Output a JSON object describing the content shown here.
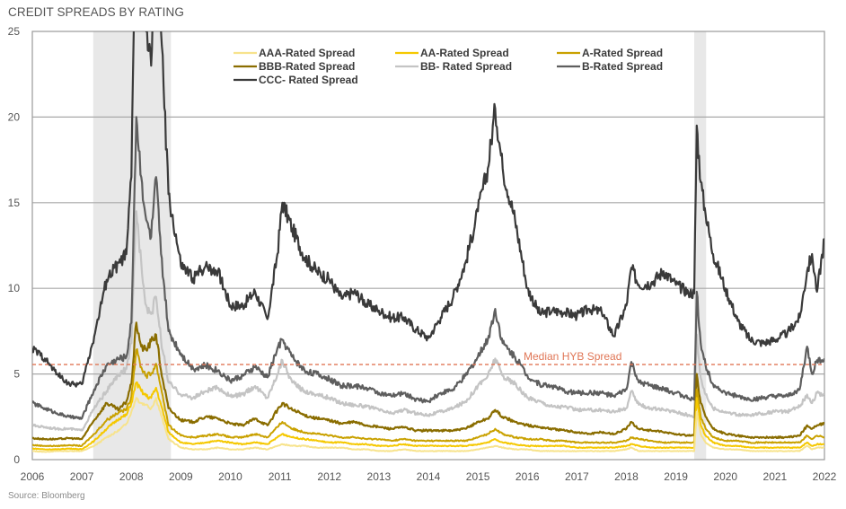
{
  "chart_data": {
    "type": "line",
    "title": "CREDIT SPREADS BY RATING",
    "source": "Source: Bloomberg",
    "xlabel": "",
    "ylabel": "",
    "xlim": [
      2006,
      2022
    ],
    "ylim": [
      0,
      25
    ],
    "yticks": [
      "0",
      "5",
      "10",
      "15",
      "20",
      "25"
    ],
    "xticks": [
      "2006",
      "2007",
      "2008",
      "2009",
      "2010",
      "2011",
      "2012",
      "2013",
      "2014",
      "2015",
      "2016",
      "2017",
      "2018",
      "2019",
      "2020",
      "2021",
      "2022"
    ],
    "grid": "horizontal",
    "legend_position": "top",
    "shaded_periods": [
      [
        2007.23,
        2008.8
      ],
      [
        2019.37,
        2019.61
      ]
    ],
    "annotations": [
      {
        "text": "Median HYB Spread",
        "y": 5.55,
        "style": "dashed",
        "color": "#e07656"
      }
    ],
    "x": [
      2006.0,
      2006.25,
      2006.5,
      2006.75,
      2007.0,
      2007.25,
      2007.5,
      2007.75,
      2007.9,
      2008.0,
      2008.1,
      2008.2,
      2008.3,
      2008.4,
      2008.5,
      2008.6,
      2008.75,
      2009.0,
      2009.25,
      2009.5,
      2009.75,
      2010.0,
      2010.25,
      2010.5,
      2010.75,
      2010.95,
      2011.05,
      2011.25,
      2011.5,
      2011.75,
      2012.0,
      2012.25,
      2012.5,
      2012.75,
      2013.0,
      2013.25,
      2013.5,
      2013.75,
      2014.0,
      2014.25,
      2014.5,
      2014.75,
      2015.0,
      2015.2,
      2015.35,
      2015.5,
      2015.75,
      2016.0,
      2016.25,
      2016.5,
      2016.75,
      2017.0,
      2017.25,
      2017.5,
      2017.75,
      2018.0,
      2018.1,
      2018.25,
      2018.5,
      2018.75,
      2019.0,
      2019.25,
      2019.37,
      2019.42,
      2019.5,
      2019.6,
      2019.75,
      2020.0,
      2020.25,
      2020.5,
      2020.75,
      2021.0,
      2021.25,
      2021.5,
      2021.65,
      2021.75,
      2021.85,
      2022.0
    ],
    "series": [
      {
        "name": "AAA-Rated Spread",
        "color": "#f7e38c",
        "values": [
          0.5,
          0.45,
          0.5,
          0.5,
          0.5,
          0.8,
          1.3,
          1.7,
          2.1,
          2.8,
          3.6,
          3.3,
          3.2,
          3.0,
          3.6,
          2.6,
          1.2,
          0.7,
          0.6,
          0.6,
          0.7,
          0.6,
          0.6,
          0.7,
          0.6,
          0.8,
          0.9,
          0.8,
          0.8,
          0.7,
          0.7,
          0.7,
          0.6,
          0.6,
          0.5,
          0.5,
          0.6,
          0.5,
          0.5,
          0.5,
          0.5,
          0.5,
          0.6,
          0.7,
          0.8,
          0.7,
          0.6,
          0.6,
          0.5,
          0.5,
          0.5,
          0.5,
          0.5,
          0.5,
          0.5,
          0.6,
          0.7,
          0.5,
          0.5,
          0.5,
          0.5,
          0.5,
          0.5,
          2.8,
          1.5,
          1.0,
          0.7,
          0.6,
          0.6,
          0.5,
          0.5,
          0.5,
          0.5,
          0.5,
          0.8,
          0.6,
          0.7,
          0.7
        ]
      },
      {
        "name": "AA-Rated Spread",
        "color": "#f5c800",
        "values": [
          0.65,
          0.6,
          0.6,
          0.65,
          0.6,
          1.1,
          1.8,
          2.4,
          2.6,
          3.3,
          4.5,
          4.0,
          3.7,
          3.6,
          4.2,
          3.2,
          1.6,
          1.0,
          0.9,
          1.0,
          1.1,
          1.0,
          0.9,
          1.0,
          0.9,
          1.3,
          1.5,
          1.3,
          1.2,
          1.1,
          1.0,
          1.0,
          0.9,
          0.9,
          0.8,
          0.8,
          0.9,
          0.8,
          0.8,
          0.8,
          0.8,
          0.8,
          0.9,
          1.0,
          1.2,
          1.0,
          0.9,
          0.8,
          0.8,
          0.8,
          0.8,
          0.7,
          0.7,
          0.7,
          0.7,
          0.8,
          0.9,
          0.8,
          0.7,
          0.7,
          0.7,
          0.7,
          0.7,
          3.6,
          2.0,
          1.4,
          1.0,
          0.8,
          0.8,
          0.7,
          0.7,
          0.7,
          0.7,
          0.7,
          1.0,
          0.8,
          0.9,
          0.9
        ]
      },
      {
        "name": "A-Rated Spread",
        "color": "#c9a100",
        "values": [
          0.85,
          0.8,
          0.8,
          0.85,
          0.8,
          1.5,
          2.3,
          2.8,
          2.9,
          3.7,
          6.4,
          5.4,
          4.9,
          5.0,
          5.6,
          4.2,
          2.0,
          1.4,
          1.3,
          1.4,
          1.5,
          1.3,
          1.3,
          1.5,
          1.3,
          1.9,
          2.2,
          1.8,
          1.6,
          1.5,
          1.4,
          1.3,
          1.3,
          1.2,
          1.2,
          1.1,
          1.2,
          1.1,
          1.1,
          1.1,
          1.1,
          1.1,
          1.3,
          1.5,
          1.8,
          1.5,
          1.3,
          1.2,
          1.2,
          1.1,
          1.1,
          1.0,
          1.0,
          1.0,
          1.0,
          1.1,
          1.3,
          1.2,
          1.1,
          1.0,
          1.0,
          1.0,
          1.0,
          4.1,
          2.5,
          1.8,
          1.3,
          1.1,
          1.1,
          1.0,
          1.0,
          1.0,
          1.0,
          1.0,
          1.4,
          1.2,
          1.4,
          1.3
        ]
      },
      {
        "name": "BBB-Rated Spread",
        "color": "#8a6d00",
        "values": [
          1.25,
          1.2,
          1.2,
          1.25,
          1.2,
          2.3,
          3.3,
          2.9,
          3.4,
          4.4,
          8.0,
          6.6,
          6.4,
          6.9,
          7.3,
          5.2,
          3.0,
          2.3,
          2.2,
          2.5,
          2.4,
          2.1,
          2.0,
          2.4,
          2.0,
          2.9,
          3.3,
          2.9,
          2.6,
          2.4,
          2.3,
          2.1,
          2.2,
          2.0,
          1.9,
          1.8,
          1.9,
          1.7,
          1.7,
          1.7,
          1.7,
          1.8,
          2.2,
          2.4,
          2.9,
          2.5,
          2.2,
          2.0,
          1.9,
          1.8,
          1.7,
          1.6,
          1.5,
          1.6,
          1.5,
          1.8,
          2.2,
          1.8,
          1.7,
          1.6,
          1.5,
          1.4,
          1.4,
          5.0,
          3.3,
          2.5,
          1.8,
          1.5,
          1.4,
          1.3,
          1.3,
          1.3,
          1.3,
          1.4,
          2.0,
          1.8,
          2.0,
          2.1
        ]
      },
      {
        "name": "BB- Rated Spread",
        "color": "#c4c4c4",
        "values": [
          2.0,
          1.9,
          1.8,
          1.8,
          1.7,
          3.0,
          4.0,
          5.0,
          5.3,
          6.8,
          14.5,
          11.5,
          9.0,
          8.5,
          9.5,
          7.0,
          4.5,
          3.8,
          3.6,
          4.0,
          4.2,
          3.7,
          3.8,
          4.3,
          3.6,
          5.0,
          5.8,
          4.5,
          4.0,
          3.8,
          3.6,
          3.3,
          3.2,
          3.1,
          2.9,
          2.7,
          2.9,
          2.7,
          2.6,
          2.8,
          3.0,
          3.4,
          4.3,
          4.9,
          5.9,
          4.9,
          4.4,
          3.6,
          3.4,
          3.1,
          3.1,
          2.9,
          2.9,
          2.9,
          2.8,
          3.0,
          4.0,
          3.2,
          3.0,
          2.9,
          2.8,
          2.6,
          2.5,
          7.3,
          4.8,
          3.8,
          3.0,
          2.8,
          2.6,
          2.6,
          2.7,
          2.8,
          2.8,
          3.1,
          3.8,
          3.3,
          3.9,
          3.8
        ]
      },
      {
        "name": "B-Rated Spread",
        "color": "#5e5e5e",
        "values": [
          3.3,
          3.0,
          2.7,
          2.5,
          2.4,
          4.1,
          5.5,
          5.9,
          6.0,
          8.0,
          20.0,
          16.5,
          14.0,
          13.0,
          16.5,
          12.0,
          7.5,
          6.2,
          5.3,
          5.5,
          5.2,
          4.6,
          4.9,
          5.4,
          4.8,
          6.5,
          7.0,
          6.0,
          5.2,
          5.0,
          4.7,
          4.3,
          4.3,
          4.2,
          3.9,
          3.7,
          3.9,
          3.5,
          3.4,
          3.9,
          4.1,
          4.9,
          6.0,
          7.0,
          8.8,
          6.8,
          6.0,
          4.9,
          4.4,
          4.3,
          4.0,
          3.9,
          3.9,
          3.9,
          3.7,
          4.1,
          5.7,
          4.5,
          4.3,
          4.1,
          3.9,
          3.6,
          3.5,
          9.8,
          6.8,
          5.5,
          4.4,
          3.9,
          3.7,
          3.5,
          3.6,
          3.7,
          3.7,
          4.1,
          6.6,
          5.0,
          5.8,
          5.9
        ]
      },
      {
        "name": "CCC- Rated Spread",
        "color": "#3a3a3a",
        "values": [
          6.5,
          5.9,
          5.0,
          4.4,
          4.4,
          7.2,
          10.5,
          11.5,
          12.0,
          16.5,
          35.0,
          30.0,
          25.0,
          23.0,
          30.0,
          25.0,
          15.5,
          11.3,
          10.6,
          11.3,
          11.0,
          9.0,
          9.0,
          9.8,
          8.2,
          12.0,
          15.0,
          13.5,
          11.8,
          11.0,
          10.5,
          9.4,
          9.8,
          9.1,
          8.7,
          8.3,
          8.3,
          7.6,
          7.1,
          8.3,
          9.5,
          11.5,
          14.5,
          17.0,
          20.5,
          17.0,
          14.0,
          10.0,
          8.5,
          8.7,
          8.6,
          8.4,
          8.8,
          8.6,
          7.2,
          9.0,
          11.2,
          10.2,
          10.3,
          11.0,
          10.2,
          9.8,
          9.7,
          19.5,
          16.2,
          14.3,
          12.0,
          10.0,
          8.1,
          7.0,
          6.8,
          7.0,
          7.4,
          8.3,
          11.0,
          12.0,
          9.8,
          12.9
        ]
      }
    ]
  }
}
